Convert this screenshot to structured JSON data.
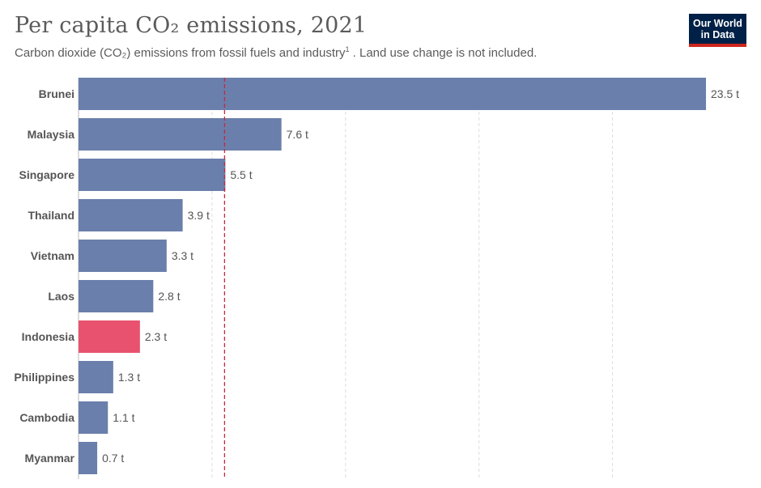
{
  "header": {
    "title": "Per capita CO₂ emissions, 2021",
    "subtitle_main": "Carbon dioxide (CO₂) emissions from fossil fuels and industry",
    "subtitle_sup": "1",
    "subtitle_rest": " . Land use change is not included."
  },
  "logo": {
    "line1": "Our World",
    "line2": "in Data"
  },
  "colors": {
    "bar": "#6a7fab",
    "highlight": "#e8526e",
    "reference_line": "#c8283c",
    "grid": "#dddddd",
    "logo_bg": "#002147",
    "logo_accent": "#ce261e"
  },
  "chart_data": {
    "type": "bar",
    "orientation": "horizontal",
    "title": "Per capita CO₂ emissions, 2021",
    "unit": "t",
    "categories": [
      "Brunei",
      "Malaysia",
      "Singapore",
      "Thailand",
      "Vietnam",
      "Laos",
      "Indonesia",
      "Philippines",
      "Cambodia",
      "Myanmar"
    ],
    "values": [
      23.5,
      7.6,
      5.5,
      3.9,
      3.3,
      2.8,
      2.3,
      1.3,
      1.1,
      0.7
    ],
    "value_labels": [
      "23.5 t",
      "7.6 t",
      "5.5 t",
      "3.9 t",
      "3.3 t",
      "2.8 t",
      "2.3 t",
      "1.3 t",
      "1.1 t",
      "0.7 t"
    ],
    "highlighted": "Indonesia",
    "reference_line": {
      "value": 5.5,
      "style": "dashed"
    },
    "xlim": [
      0,
      25
    ],
    "gridlines": [
      5,
      10,
      15,
      20
    ]
  }
}
